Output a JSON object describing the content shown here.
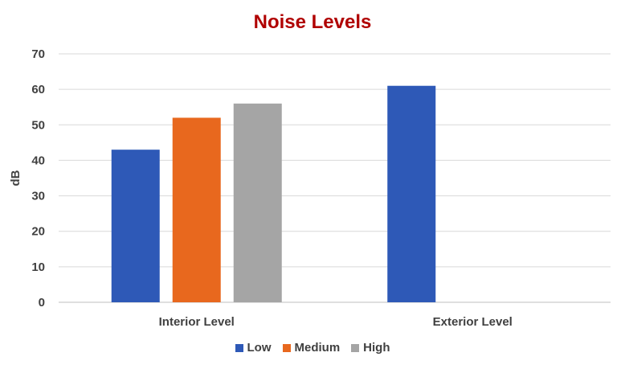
{
  "chart_data": {
    "type": "bar",
    "title": "Noise Levels",
    "xlabel": "",
    "ylabel": "dB",
    "categories": [
      "Interior Level",
      "Exterior Level"
    ],
    "ylim": [
      0,
      70
    ],
    "yticks": [
      0,
      10,
      20,
      30,
      40,
      50,
      60,
      70
    ],
    "grid": true,
    "legend_position": "bottom",
    "series": [
      {
        "name": "Low",
        "color": "#2e59b7",
        "values": [
          43,
          61
        ]
      },
      {
        "name": "Medium",
        "color": "#e8681e",
        "values": [
          52,
          null
        ]
      },
      {
        "name": "High",
        "color": "#a5a5a5",
        "values": [
          56,
          null
        ]
      }
    ]
  }
}
